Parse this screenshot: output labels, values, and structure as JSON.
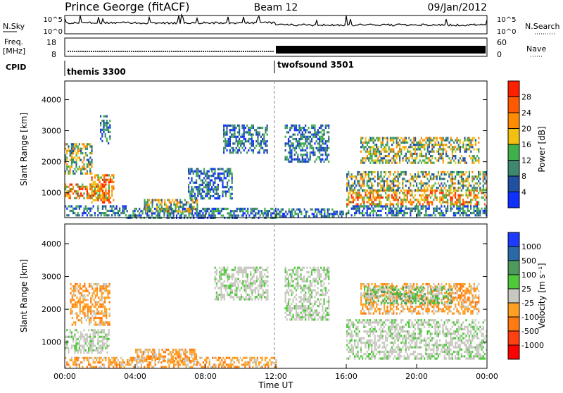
{
  "header": {
    "station": "Prince George (fitACF)",
    "beam": "Beam 12",
    "date": "09/Jan/2012"
  },
  "strips": {
    "nsky": {
      "label": "N.Sky",
      "ticks": [
        "10^5",
        "10^0"
      ],
      "right_label": "N.Search",
      "right_ticks": [
        "10^5",
        "10^0"
      ]
    },
    "freq": {
      "label_line1": "Freq.",
      "label_line2": "[MHz]",
      "ticks": [
        "18",
        "8"
      ],
      "right_label": "Nave",
      "right_ticks": [
        "60",
        "0"
      ]
    },
    "cpid": {
      "label": "CPID",
      "programs": [
        {
          "name": "themis 3300",
          "start_hour": 0
        },
        {
          "name": "twofsound 3501",
          "start_hour": 12
        }
      ]
    }
  },
  "chart_data": [
    {
      "type": "heatmap",
      "parameter": "Power",
      "ylabel": "Slant Range [km]",
      "xlabel": "",
      "y_ticks": [
        1000,
        2000,
        3000,
        4000
      ],
      "ylim": [
        200,
        4600
      ],
      "x_ticks": [
        "00:00",
        "04:00",
        "08:00",
        "12:00",
        "16:00",
        "20:00",
        "00:00"
      ],
      "xlim_hours": [
        0,
        24
      ],
      "colorbar": {
        "label": "Power [dB]",
        "tick_labels": [
          "4",
          "8",
          "12",
          "16",
          "20",
          "24",
          "28"
        ],
        "colors": [
          "#1030ff",
          "#2050a0",
          "#3f8870",
          "#3fb04a",
          "#f2c010",
          "#ff8c00",
          "#ff5a00",
          "#ff2000"
        ]
      },
      "regions": [
        {
          "t_start": 0.0,
          "t_end": 3.5,
          "r_min": 300,
          "r_max": 600,
          "level": "low"
        },
        {
          "t_start": 0.0,
          "t_end": 2.5,
          "r_min": 800,
          "r_max": 1300,
          "level": "high"
        },
        {
          "t_start": 0.0,
          "t_end": 1.5,
          "r_min": 1600,
          "r_max": 2600,
          "level": "mid"
        },
        {
          "t_start": 1.5,
          "t_end": 2.8,
          "r_min": 700,
          "r_max": 1600,
          "level": "high"
        },
        {
          "t_start": 2.0,
          "t_end": 2.6,
          "r_min": 2600,
          "r_max": 3500,
          "level": "low"
        },
        {
          "t_start": 3.5,
          "t_end": 12.0,
          "r_min": 220,
          "r_max": 520,
          "level": "low"
        },
        {
          "t_start": 4.5,
          "t_end": 7.5,
          "r_min": 400,
          "r_max": 800,
          "level": "mid"
        },
        {
          "t_start": 9.0,
          "t_end": 11.5,
          "r_min": 2300,
          "r_max": 3200,
          "level": "low"
        },
        {
          "t_start": 7.0,
          "t_end": 9.5,
          "r_min": 800,
          "r_max": 1800,
          "level": "low"
        },
        {
          "t_start": 12.0,
          "t_end": 16.0,
          "r_min": 220,
          "r_max": 500,
          "level": "low"
        },
        {
          "t_start": 12.5,
          "t_end": 15.0,
          "r_min": 2000,
          "r_max": 3200,
          "level": "low"
        },
        {
          "t_start": 16.0,
          "t_end": 24.0,
          "r_min": 600,
          "r_max": 1100,
          "level": "high"
        },
        {
          "t_start": 16.0,
          "t_end": 24.0,
          "r_min": 1100,
          "r_max": 1700,
          "level": "mid"
        },
        {
          "t_start": 16.8,
          "t_end": 23.5,
          "r_min": 2000,
          "r_max": 2800,
          "level": "mid"
        },
        {
          "t_start": 16.0,
          "t_end": 24.0,
          "r_min": 300,
          "r_max": 600,
          "level": "low"
        }
      ]
    },
    {
      "type": "heatmap",
      "parameter": "Velocity",
      "ylabel": "Slant Range [km]",
      "xlabel": "Time UT",
      "y_ticks": [
        1000,
        2000,
        3000,
        4000
      ],
      "ylim": [
        200,
        4600
      ],
      "x_ticks": [
        "00:00",
        "04:00",
        "08:00",
        "12:00",
        "16:00",
        "20:00",
        "00:00"
      ],
      "xlim_hours": [
        0,
        24
      ],
      "colorbar": {
        "label": "Velocity [m s⁻¹]",
        "tick_labels": [
          "1000",
          "500",
          "100",
          "25",
          "-25",
          "-100",
          "-500",
          "-1000"
        ],
        "colors": [
          "#1e3cff",
          "#2a6aa8",
          "#4e9a5c",
          "#4ec93a",
          "#c8c8c0",
          "#ffa020",
          "#ff7a10",
          "#ff4010",
          "#ff0000"
        ]
      },
      "regions": [
        {
          "t_start": 0.0,
          "t_end": 2.5,
          "r_min": 700,
          "r_max": 1400,
          "level": "zero"
        },
        {
          "t_start": 0.3,
          "t_end": 2.5,
          "r_min": 1500,
          "r_max": 2800,
          "level": "away"
        },
        {
          "t_start": 0.0,
          "t_end": 12.0,
          "r_min": 220,
          "r_max": 550,
          "level": "away"
        },
        {
          "t_start": 4.0,
          "t_end": 7.5,
          "r_min": 400,
          "r_max": 800,
          "level": "away"
        },
        {
          "t_start": 8.5,
          "t_end": 11.5,
          "r_min": 2300,
          "r_max": 3300,
          "level": "zero"
        },
        {
          "t_start": 12.5,
          "t_end": 15.0,
          "r_min": 1700,
          "r_max": 3300,
          "level": "zero"
        },
        {
          "t_start": 16.0,
          "t_end": 24.0,
          "r_min": 500,
          "r_max": 1700,
          "level": "zero"
        },
        {
          "t_start": 16.8,
          "t_end": 23.5,
          "r_min": 1900,
          "r_max": 2800,
          "level": "away"
        },
        {
          "t_start": 17.0,
          "t_end": 22.0,
          "r_min": 2200,
          "r_max": 2700,
          "level": "toward"
        }
      ]
    }
  ]
}
